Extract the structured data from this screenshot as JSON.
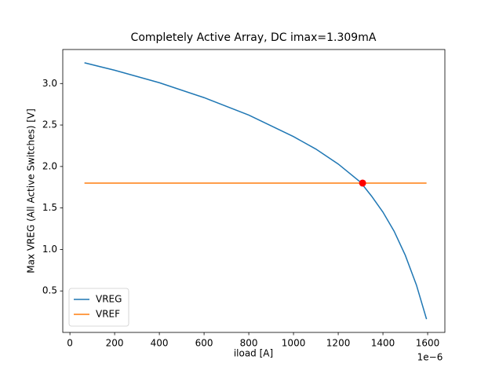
{
  "chart_data": {
    "type": "line",
    "title": "Completely Active Array, DC imax=1.309mA",
    "xlabel": "iload [A]",
    "ylabel": "Max VREG (All Active Switches) [V]",
    "x_offset_text": "1e−6",
    "x": [
      65,
      200,
      400,
      600,
      800,
      1000,
      1100,
      1200,
      1300,
      1350,
      1400,
      1450,
      1500,
      1550,
      1595
    ],
    "series": [
      {
        "name": "VREG",
        "color": "#1f77b4",
        "values": [
          3.25,
          3.16,
          3.01,
          2.83,
          2.62,
          2.36,
          2.21,
          2.03,
          1.81,
          1.64,
          1.45,
          1.22,
          0.93,
          0.57,
          0.16
        ]
      },
      {
        "name": "VREF",
        "color": "#ff7f0e",
        "values": [
          1.8,
          1.8,
          1.8,
          1.8,
          1.8,
          1.8,
          1.8,
          1.8,
          1.8,
          1.8,
          1.8,
          1.8,
          1.8,
          1.8,
          1.8
        ]
      }
    ],
    "marker": {
      "x": 1309,
      "y": 1.8,
      "color": "#ff0000"
    },
    "xlim": [
      -32,
      1677
    ],
    "ylim": [
      0.0,
      3.41
    ],
    "xticks": [
      0,
      200,
      400,
      600,
      800,
      1000,
      1200,
      1400,
      1600
    ],
    "yticks": [
      0.5,
      {
        "value": 1,
        "label": "1.0"
      },
      1.5,
      {
        "value": 2,
        "label": "2.0"
      },
      2.5,
      {
        "value": 3,
        "label": "3.0"
      }
    ],
    "grid": false,
    "legend": "lower left"
  }
}
